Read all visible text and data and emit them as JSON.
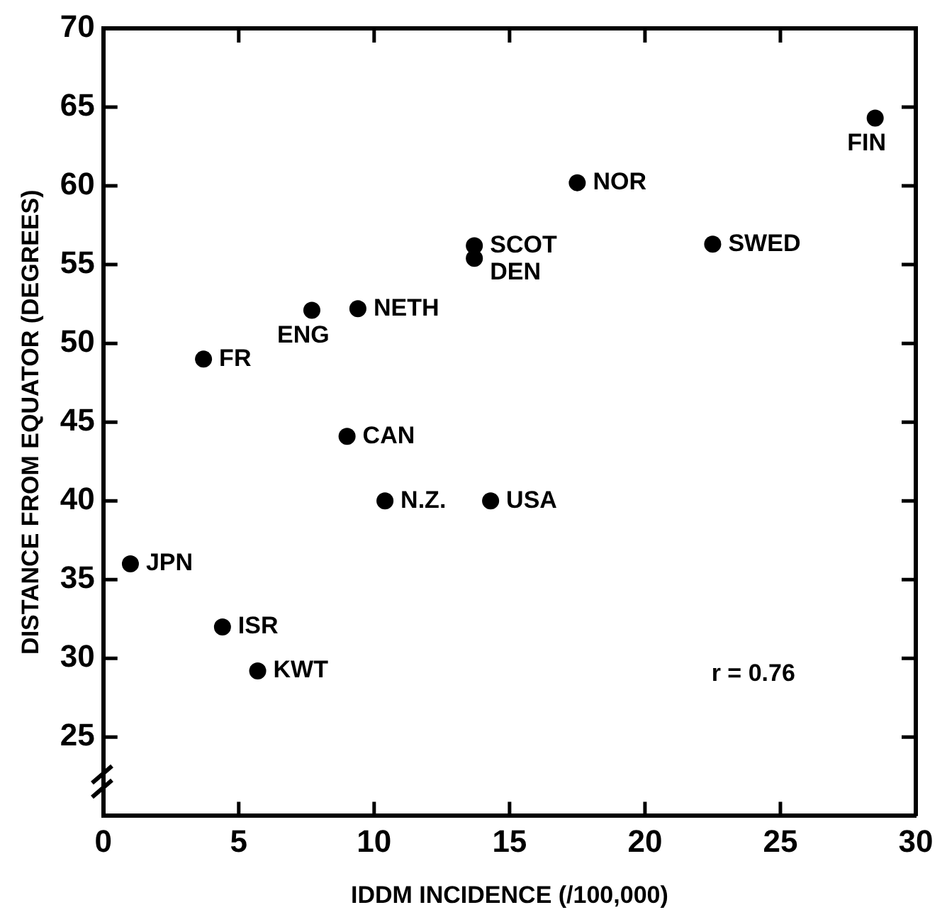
{
  "chart_data": {
    "type": "scatter",
    "xlabel": "IDDM INCIDENCE (/100,000)",
    "ylabel": "DISTANCE FROM EQUATOR (DEGREES)",
    "xlim": [
      0,
      30
    ],
    "xticks": [
      0,
      5,
      10,
      15,
      20,
      25,
      30
    ],
    "ylim": [
      20,
      70
    ],
    "yticks": [
      {
        "value": 20,
        "label": null
      },
      25,
      30,
      35,
      40,
      45,
      50,
      55,
      60,
      65,
      70
    ],
    "grid": false,
    "legend": false,
    "marker": "circle",
    "series": [
      {
        "color": "#000000",
        "x": [
          1.0,
          4.4,
          5.7,
          10.4,
          14.3,
          3.7,
          7.7,
          9.4,
          9.0,
          13.7,
          13.7,
          17.5,
          22.5,
          28.5
        ],
        "values": [
          36,
          32,
          29.2,
          40,
          40,
          49,
          52.1,
          52.2,
          44.1,
          56.2,
          55.4,
          60.2,
          56.3,
          64.3
        ]
      }
    ],
    "annotations": [
      {
        "text": "JPN",
        "x": 1.0,
        "y": 36
      },
      {
        "text": "ISR",
        "x": 4.4,
        "y": 32
      },
      {
        "text": "KWT",
        "x": 5.7,
        "y": 29.2
      },
      {
        "text": "N.Z.",
        "x": 10.4,
        "y": 40
      },
      {
        "text": "USA",
        "x": 14.3,
        "y": 40
      },
      {
        "text": "FR",
        "x": 3.7,
        "y": 49
      },
      {
        "text": "ENG",
        "x": 7.7,
        "y": 52.1
      },
      {
        "text": "NETH",
        "x": 9.4,
        "y": 52.2
      },
      {
        "text": "CAN",
        "x": 9.0,
        "y": 44.1
      },
      {
        "text": "SCOT",
        "x": 13.7,
        "y": 56.2
      },
      {
        "text": "DEN",
        "x": 13.7,
        "y": 55.4
      },
      {
        "text": "NOR",
        "x": 17.5,
        "y": 60.2
      },
      {
        "text": "SWED",
        "x": 22.5,
        "y": 56.3
      },
      {
        "text": "FIN",
        "x": 28.5,
        "y": 64.3
      },
      "r = 0.76"
    ]
  }
}
